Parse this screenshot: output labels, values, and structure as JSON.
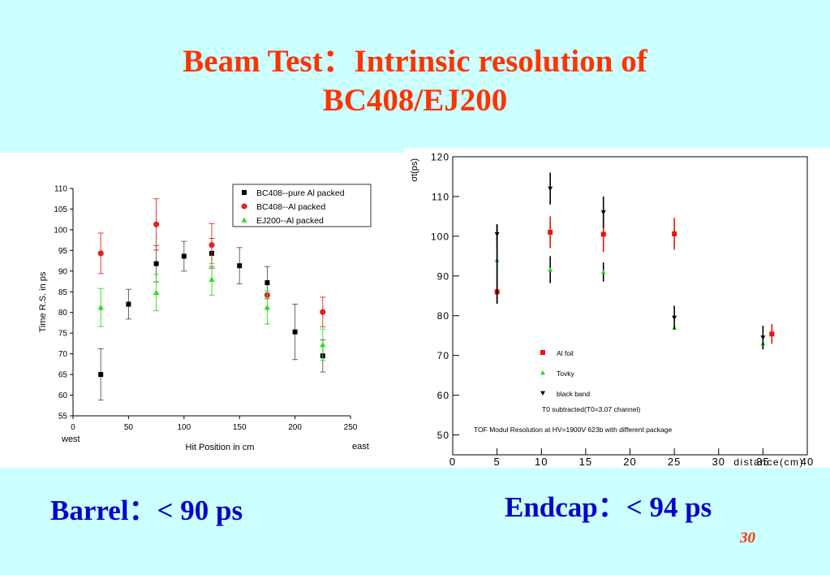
{
  "title": {
    "line1": "Beam Test：Intrinsic resolution of",
    "line2": "BC408/EJ200"
  },
  "captions": {
    "barrel": "Barrel：< 90 ps",
    "endcap": "Endcap：< 94 ps"
  },
  "page_number": "30",
  "chart_data": [
    {
      "type": "scatter",
      "xlabel": "Hit Position in cm",
      "ylabel": "Time R.S. in ps",
      "x_end_labels": {
        "left": "west",
        "right": "east"
      },
      "xlim": [
        0,
        250
      ],
      "ylim": [
        55,
        110
      ],
      "xticks": [
        0,
        50,
        100,
        150,
        200,
        250
      ],
      "yticks": [
        55,
        60,
        65,
        70,
        75,
        80,
        85,
        90,
        95,
        100,
        105,
        110
      ],
      "grid": false,
      "legend_position": "top-right",
      "series": [
        {
          "name": "BC408--pure Al packed",
          "marker": "square",
          "color": "#000000",
          "points": [
            {
              "x": 25,
              "y": 65.0,
              "err": 6.2
            },
            {
              "x": 50,
              "y": 82.0,
              "err": 3.6
            },
            {
              "x": 75,
              "y": 91.8,
              "err": 4.4
            },
            {
              "x": 100,
              "y": 93.6,
              "err": 3.6
            },
            {
              "x": 125,
              "y": 94.3,
              "err": 3.6
            },
            {
              "x": 150,
              "y": 91.3,
              "err": 4.4
            },
            {
              "x": 175,
              "y": 87.2,
              "err": 3.9
            },
            {
              "x": 200,
              "y": 75.3,
              "err": 6.7
            },
            {
              "x": 225,
              "y": 69.5,
              "err": 3.9
            }
          ]
        },
        {
          "name": "BC408--Al packed",
          "marker": "circle",
          "color": "#e8201e",
          "points": [
            {
              "x": 25,
              "y": 94.3,
              "err": 4.9
            },
            {
              "x": 75,
              "y": 101.3,
              "err": 6.2
            },
            {
              "x": 125,
              "y": 96.3,
              "err": 5.2
            },
            {
              "x": 175,
              "y": 84.2,
              "err": 0
            },
            {
              "x": 225,
              "y": 80.1,
              "err": 3.6
            }
          ]
        },
        {
          "name": "EJ200--Al packed",
          "marker": "triangle-up",
          "color": "#22dd22",
          "points": [
            {
              "x": 25,
              "y": 81.2,
              "err": 4.6
            },
            {
              "x": 75,
              "y": 84.8,
              "err": 4.4
            },
            {
              "x": 125,
              "y": 88.0,
              "err": 3.8
            },
            {
              "x": 175,
              "y": 81.2,
              "err": 4.0
            },
            {
              "x": 225,
              "y": 72.2,
              "err": 3.8
            }
          ]
        }
      ]
    },
    {
      "type": "scatter",
      "xlabel": "distance(cm)",
      "ylabel": "σt(ps)",
      "xlim": [
        0,
        40
      ],
      "ylim": [
        45,
        120
      ],
      "xticks": [
        0,
        5,
        10,
        15,
        20,
        25,
        30,
        35,
        40
      ],
      "yticks": [
        50,
        60,
        70,
        80,
        90,
        100,
        110,
        120
      ],
      "grid": false,
      "legend_position": "bottom-center",
      "annotations": [
        "T0 subtracted(T0=3.07 channel)",
        "TOF Modul Resolution at HV=1900V 623b with different package"
      ],
      "series": [
        {
          "name": "Al foil",
          "marker": "square",
          "color": "#ee1111",
          "points": [
            {
              "x": 5,
              "y": 86.0,
              "err": 0
            },
            {
              "x": 11,
              "y": 101.0,
              "err": 4.0
            },
            {
              "x": 17,
              "y": 100.5,
              "err": 4.5
            },
            {
              "x": 25,
              "y": 100.6,
              "err": 4.0
            },
            {
              "x": 36,
              "y": 75.4,
              "err": 2.5
            }
          ]
        },
        {
          "name": "Tovky",
          "marker": "triangle-up",
          "color": "#22dd22",
          "points": [
            {
              "x": 5,
              "y": 94.0,
              "err": 0
            },
            {
              "x": 11,
              "y": 91.6,
              "err": 3.4
            },
            {
              "x": 17,
              "y": 91.0,
              "err": 2.4
            },
            {
              "x": 25,
              "y": 77.0,
              "err": 0
            },
            {
              "x": 35,
              "y": 73.0,
              "err": 0
            }
          ]
        },
        {
          "name": "black band",
          "marker": "triangle-down",
          "color": "#000000",
          "points": [
            {
              "x": 5,
              "y": 100.5,
              "err": 2.5
            },
            {
              "x": 11,
              "y": 112.0,
              "err": 4.0
            },
            {
              "x": 17,
              "y": 106.0,
              "err": 4.0
            },
            {
              "x": 25,
              "y": 79.5,
              "err": 3.0
            },
            {
              "x": 35,
              "y": 74.5,
              "err": 3.0
            }
          ]
        }
      ]
    }
  ]
}
